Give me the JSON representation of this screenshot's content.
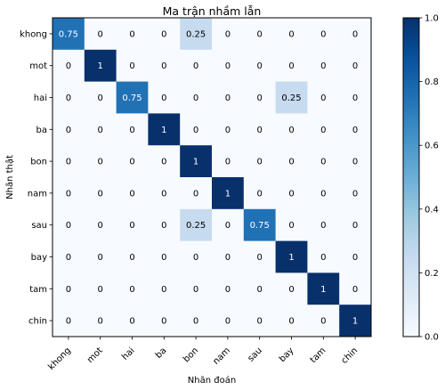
{
  "chart_data": {
    "type": "heatmap",
    "title": "Ma trận nhầm lẫn",
    "xlabel": "Nhãn đoán",
    "ylabel": "Nhãn thật",
    "categories": [
      "khong",
      "mot",
      "hai",
      "ba",
      "bon",
      "nam",
      "sau",
      "bay",
      "tam",
      "chin"
    ],
    "values": [
      [
        0.75,
        0,
        0,
        0,
        0.25,
        0,
        0,
        0,
        0,
        0
      ],
      [
        0,
        1,
        0,
        0,
        0,
        0,
        0,
        0,
        0,
        0
      ],
      [
        0,
        0,
        0.75,
        0,
        0,
        0,
        0,
        0.25,
        0,
        0
      ],
      [
        0,
        0,
        0,
        1,
        0,
        0,
        0,
        0,
        0,
        0
      ],
      [
        0,
        0,
        0,
        0,
        1,
        0,
        0,
        0,
        0,
        0
      ],
      [
        0,
        0,
        0,
        0,
        0,
        1,
        0,
        0,
        0,
        0
      ],
      [
        0,
        0,
        0,
        0,
        0.25,
        0,
        0.75,
        0,
        0,
        0
      ],
      [
        0,
        0,
        0,
        0,
        0,
        0,
        0,
        1,
        0,
        0
      ],
      [
        0,
        0,
        0,
        0,
        0,
        0,
        0,
        0,
        1,
        0
      ],
      [
        0,
        0,
        0,
        0,
        0,
        0,
        0,
        0,
        0,
        1
      ]
    ],
    "value_labels": [
      [
        "0.75",
        "0",
        "0",
        "0",
        "0.25",
        "0",
        "0",
        "0",
        "0",
        "0"
      ],
      [
        "0",
        "1",
        "0",
        "0",
        "0",
        "0",
        "0",
        "0",
        "0",
        "0"
      ],
      [
        "0",
        "0",
        "0.75",
        "0",
        "0",
        "0",
        "0",
        "0.25",
        "0",
        "0"
      ],
      [
        "0",
        "0",
        "0",
        "1",
        "0",
        "0",
        "0",
        "0",
        "0",
        "0"
      ],
      [
        "0",
        "0",
        "0",
        "0",
        "1",
        "0",
        "0",
        "0",
        "0",
        "0"
      ],
      [
        "0",
        "0",
        "0",
        "0",
        "0",
        "1",
        "0",
        "0",
        "0",
        "0"
      ],
      [
        "0",
        "0",
        "0",
        "0",
        "0.25",
        "0",
        "0.75",
        "0",
        "0",
        "0"
      ],
      [
        "0",
        "0",
        "0",
        "0",
        "0",
        "0",
        "0",
        "1",
        "0",
        "0"
      ],
      [
        "0",
        "0",
        "0",
        "0",
        "0",
        "0",
        "0",
        "0",
        "1",
        "0"
      ],
      [
        "0",
        "0",
        "0",
        "0",
        "0",
        "0",
        "0",
        "0",
        "0",
        "1"
      ]
    ],
    "colorscale": "Blues",
    "colorbar": {
      "range": [
        0.0,
        1.0
      ],
      "ticks": [
        0.0,
        0.2,
        0.4,
        0.6,
        0.8,
        1.0
      ],
      "tick_labels": [
        "0.0",
        "0.2",
        "0.4",
        "0.6",
        "0.8",
        "1.0"
      ]
    },
    "grid": false,
    "legend": "colorbar-right"
  }
}
